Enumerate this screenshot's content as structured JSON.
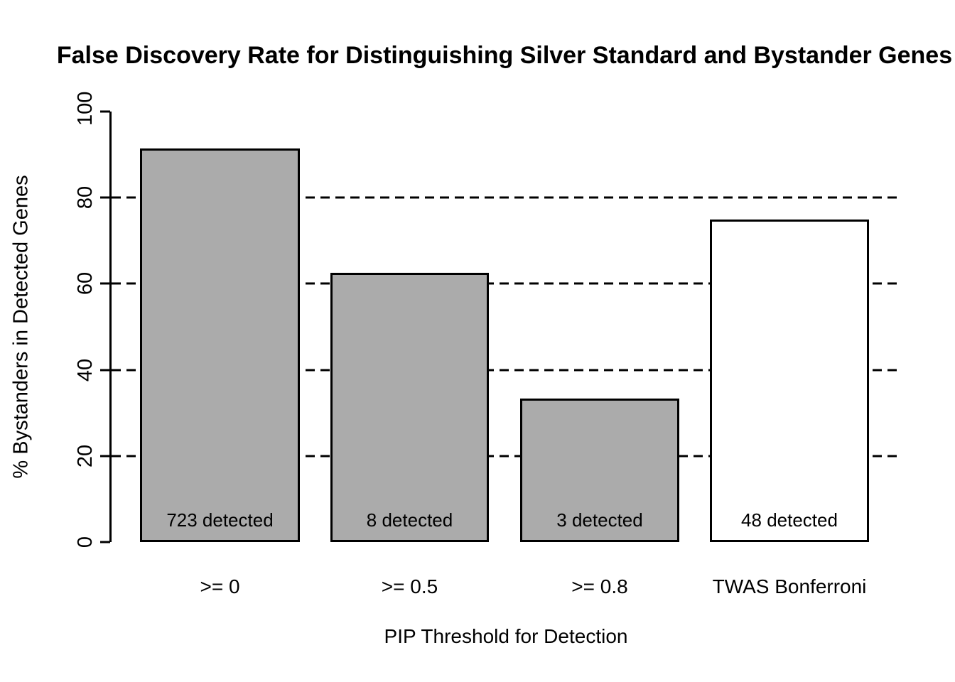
{
  "title": "False Discovery Rate for Distinguishing Silver Standard and Bystander Genes",
  "chart_data": {
    "type": "bar",
    "title": "False Discovery Rate for Distinguishing Silver Standard and Bystander Genes",
    "xlabel": "PIP Threshold for Detection",
    "ylabel": "% Bystanders in Detected Genes",
    "categories": [
      ">= 0",
      ">= 0.5",
      ">= 0.8",
      "TWAS Bonferroni"
    ],
    "values": [
      91.4,
      62.5,
      33.3,
      75
    ],
    "bar_labels": [
      "723 detected",
      "8 detected",
      "3 detected",
      "48 detected"
    ],
    "bar_colors": [
      "#ababab",
      "#ababab",
      "#ababab",
      "#ffffff"
    ],
    "ylim": [
      0,
      100
    ],
    "yticks": [
      0,
      20,
      40,
      60,
      80,
      100
    ],
    "ytick_labels": [
      "0",
      "20",
      "40",
      "60",
      "80",
      "100"
    ],
    "gridlines_y": [
      20,
      40,
      60,
      80
    ],
    "grid_style": "dashed",
    "legend_position": "none",
    "colors": {
      "bar_fill_gray": "#ababab",
      "bar_fill_white": "#ffffff",
      "line_and_text": "#000000",
      "background": "#ffffff"
    }
  }
}
